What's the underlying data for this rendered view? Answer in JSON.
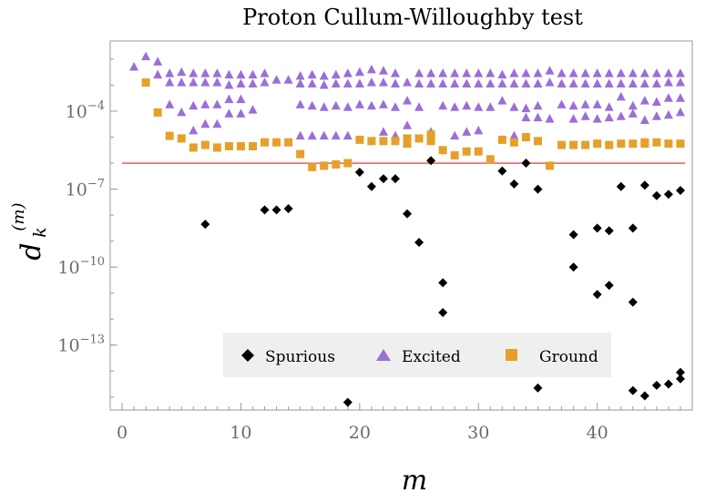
{
  "chart_data": {
    "type": "scatter",
    "title": "Proton Cullum-Willoughby test",
    "xlabel": "m",
    "ylabel_main": "d",
    "ylabel_sub": "k",
    "ylabel_sup": "(m)",
    "xlim": [
      -1,
      48
    ],
    "ylim_log10": [
      -15.5,
      -1.3
    ],
    "y_scale": "log",
    "x_ticks": [
      0,
      10,
      20,
      30,
      40
    ],
    "y_ticks": [
      {
        "exp": -4,
        "base": "10",
        "sup": "−4"
      },
      {
        "exp": -7,
        "base": "10",
        "sup": "−7"
      },
      {
        "exp": -10,
        "base": "10",
        "sup": "−10"
      },
      {
        "exp": -13,
        "base": "10",
        "sup": "−13"
      }
    ],
    "threshold_line": {
      "log10_y": -6.0,
      "color": "#e8202a"
    },
    "legend_position": "bottom-center",
    "series": [
      {
        "name": "Spurious",
        "marker": "diamond",
        "color": "#000000",
        "points": [
          [
            7,
            -8.35
          ],
          [
            12,
            -7.8
          ],
          [
            13,
            -7.8
          ],
          [
            14,
            -7.75
          ],
          [
            19,
            -15.2
          ],
          [
            20,
            -6.35
          ],
          [
            21,
            -6.9
          ],
          [
            22,
            -6.6
          ],
          [
            23,
            -6.6
          ],
          [
            24,
            -7.95
          ],
          [
            25,
            -9.05
          ],
          [
            26,
            -5.9
          ],
          [
            27,
            -10.6
          ],
          [
            27,
            -11.75
          ],
          [
            32,
            -6.3
          ],
          [
            33,
            -6.8
          ],
          [
            34,
            -6.0
          ],
          [
            35,
            -14.65
          ],
          [
            35,
            -7.0
          ],
          [
            38,
            -8.75
          ],
          [
            38,
            -10.0
          ],
          [
            40,
            -8.5
          ],
          [
            40,
            -11.05
          ],
          [
            41,
            -8.6
          ],
          [
            41,
            -10.7
          ],
          [
            42,
            -6.9
          ],
          [
            43,
            -8.5
          ],
          [
            43,
            -11.35
          ],
          [
            43,
            -14.75
          ],
          [
            44,
            -14.95
          ],
          [
            44,
            -6.85
          ],
          [
            45,
            -14.55
          ],
          [
            45,
            -7.25
          ],
          [
            46,
            -14.5
          ],
          [
            46,
            -7.2
          ],
          [
            47,
            -7.05
          ],
          [
            47,
            -14.3
          ],
          [
            47,
            -14.05
          ]
        ]
      },
      {
        "name": "Excited",
        "marker": "triangle",
        "color": "#9b6fd6",
        "points": [
          [
            1,
            -2.3
          ],
          [
            2,
            -1.9
          ],
          [
            3,
            -2.1
          ],
          [
            4,
            -2.55
          ],
          [
            5,
            -2.5
          ],
          [
            6,
            -2.55
          ],
          [
            7,
            -2.55
          ],
          [
            8,
            -2.55
          ],
          [
            9,
            -2.6
          ],
          [
            10,
            -2.6
          ],
          [
            11,
            -2.6
          ],
          [
            12,
            -2.55
          ],
          [
            13,
            -2.8
          ],
          [
            14,
            -2.8
          ],
          [
            15,
            -2.65
          ],
          [
            16,
            -2.6
          ],
          [
            17,
            -2.65
          ],
          [
            18,
            -2.6
          ],
          [
            19,
            -2.55
          ],
          [
            20,
            -2.5
          ],
          [
            21,
            -2.4
          ],
          [
            22,
            -2.45
          ],
          [
            23,
            -2.55
          ],
          [
            24,
            -3.6
          ],
          [
            25,
            -2.55
          ],
          [
            26,
            -2.55
          ],
          [
            27,
            -2.55
          ],
          [
            28,
            -2.55
          ],
          [
            29,
            -2.55
          ],
          [
            30,
            -2.55
          ],
          [
            31,
            -2.55
          ],
          [
            32,
            -2.6
          ],
          [
            33,
            -2.55
          ],
          [
            34,
            -2.55
          ],
          [
            35,
            -2.55
          ],
          [
            36,
            -2.45
          ],
          [
            37,
            -2.55
          ],
          [
            38,
            -2.55
          ],
          [
            39,
            -2.55
          ],
          [
            40,
            -2.55
          ],
          [
            41,
            -2.55
          ],
          [
            42,
            -2.55
          ],
          [
            43,
            -2.55
          ],
          [
            44,
            -2.55
          ],
          [
            45,
            -2.55
          ],
          [
            46,
            -2.55
          ],
          [
            47,
            -2.55
          ],
          [
            3,
            -2.6
          ],
          [
            4,
            -2.9
          ],
          [
            5,
            -2.9
          ],
          [
            6,
            -2.9
          ],
          [
            7,
            -2.9
          ],
          [
            8,
            -2.9
          ],
          [
            9,
            -3.0
          ],
          [
            10,
            -2.95
          ],
          [
            11,
            -2.95
          ],
          [
            12,
            -2.9
          ],
          [
            15,
            -2.95
          ],
          [
            16,
            -2.95
          ],
          [
            17,
            -3.0
          ],
          [
            18,
            -2.95
          ],
          [
            19,
            -2.95
          ],
          [
            20,
            -2.95
          ],
          [
            21,
            -2.9
          ],
          [
            22,
            -2.9
          ],
          [
            23,
            -2.95
          ],
          [
            24,
            -2.9
          ],
          [
            25,
            -2.95
          ],
          [
            26,
            -2.95
          ],
          [
            27,
            -2.95
          ],
          [
            28,
            -2.95
          ],
          [
            29,
            -2.95
          ],
          [
            30,
            -2.95
          ],
          [
            31,
            -2.95
          ],
          [
            32,
            -2.95
          ],
          [
            33,
            -2.95
          ],
          [
            34,
            -2.95
          ],
          [
            35,
            -2.95
          ],
          [
            36,
            -2.9
          ],
          [
            37,
            -2.95
          ],
          [
            38,
            -2.95
          ],
          [
            39,
            -2.95
          ],
          [
            40,
            -2.95
          ],
          [
            41,
            -2.95
          ],
          [
            42,
            -2.95
          ],
          [
            43,
            -2.95
          ],
          [
            44,
            -2.95
          ],
          [
            45,
            -2.95
          ],
          [
            46,
            -2.9
          ],
          [
            47,
            -2.9
          ],
          [
            4,
            -3.75
          ],
          [
            5,
            -4.05
          ],
          [
            6,
            -3.8
          ],
          [
            7,
            -3.75
          ],
          [
            8,
            -3.75
          ],
          [
            9,
            -3.55
          ],
          [
            10,
            -3.55
          ],
          [
            11,
            -3.95
          ],
          [
            15,
            -3.75
          ],
          [
            16,
            -3.8
          ],
          [
            17,
            -3.85
          ],
          [
            18,
            -3.8
          ],
          [
            19,
            -3.85
          ],
          [
            20,
            -3.75
          ],
          [
            21,
            -3.8
          ],
          [
            22,
            -3.75
          ],
          [
            23,
            -3.85
          ],
          [
            24,
            -4.55
          ],
          [
            25,
            -3.85
          ],
          [
            26,
            -4.8
          ],
          [
            27,
            -3.8
          ],
          [
            28,
            -3.85
          ],
          [
            29,
            -3.8
          ],
          [
            30,
            -3.85
          ],
          [
            31,
            -3.85
          ],
          [
            32,
            -3.6
          ],
          [
            33,
            -3.85
          ],
          [
            34,
            -3.9
          ],
          [
            35,
            -3.8
          ],
          [
            36,
            -4.3
          ],
          [
            37,
            -3.75
          ],
          [
            38,
            -3.8
          ],
          [
            39,
            -3.75
          ],
          [
            40,
            -3.75
          ],
          [
            41,
            -3.85
          ],
          [
            42,
            -3.45
          ],
          [
            43,
            -3.8
          ],
          [
            44,
            -3.6
          ],
          [
            45,
            -3.65
          ],
          [
            46,
            -3.5
          ],
          [
            47,
            -3.5
          ],
          [
            6,
            -4.75
          ],
          [
            7,
            -4.5
          ],
          [
            8,
            -4.5
          ],
          [
            9,
            -4.1
          ],
          [
            10,
            -4.1
          ],
          [
            15,
            -4.95
          ],
          [
            16,
            -4.95
          ],
          [
            17,
            -4.95
          ],
          [
            18,
            -4.95
          ],
          [
            19,
            -4.95
          ],
          [
            22,
            -4.8
          ],
          [
            23,
            -4.95
          ],
          [
            26,
            -5.0
          ],
          [
            28,
            -4.95
          ],
          [
            29,
            -4.8
          ],
          [
            30,
            -4.75
          ],
          [
            33,
            -4.95
          ],
          [
            34,
            -4.25
          ],
          [
            35,
            -4.25
          ],
          [
            38,
            -4.3
          ],
          [
            39,
            -4.2
          ],
          [
            40,
            -4.3
          ],
          [
            41,
            -4.25
          ],
          [
            42,
            -4.2
          ],
          [
            43,
            -4.1
          ],
          [
            44,
            -4.35
          ],
          [
            45,
            -4.2
          ],
          [
            46,
            -4.15
          ],
          [
            47,
            -4.05
          ]
        ]
      },
      {
        "name": "Ground",
        "marker": "square",
        "color": "#e6a02a",
        "points": [
          [
            2,
            -2.9
          ],
          [
            3,
            -4.05
          ],
          [
            4,
            -4.95
          ],
          [
            5,
            -5.05
          ],
          [
            6,
            -5.4
          ],
          [
            7,
            -5.3
          ],
          [
            8,
            -5.4
          ],
          [
            9,
            -5.35
          ],
          [
            10,
            -5.35
          ],
          [
            11,
            -5.35
          ],
          [
            12,
            -5.2
          ],
          [
            13,
            -5.2
          ],
          [
            14,
            -5.2
          ],
          [
            15,
            -5.65
          ],
          [
            16,
            -6.15
          ],
          [
            17,
            -6.1
          ],
          [
            18,
            -6.05
          ],
          [
            19,
            -6.0
          ],
          [
            20,
            -5.1
          ],
          [
            21,
            -5.15
          ],
          [
            22,
            -5.15
          ],
          [
            23,
            -5.15
          ],
          [
            24,
            -5.25
          ],
          [
            25,
            -5.05
          ],
          [
            26,
            -4.9
          ],
          [
            27,
            -5.5
          ],
          [
            28,
            -5.7
          ],
          [
            29,
            -5.55
          ],
          [
            30,
            -5.55
          ],
          [
            31,
            -5.85
          ],
          [
            32,
            -5.1
          ],
          [
            33,
            -5.2
          ],
          [
            34,
            -5.0
          ],
          [
            35,
            -5.15
          ],
          [
            36,
            -6.1
          ],
          [
            37,
            -5.3
          ],
          [
            38,
            -5.3
          ],
          [
            39,
            -5.3
          ],
          [
            40,
            -5.25
          ],
          [
            41,
            -5.3
          ],
          [
            42,
            -5.25
          ],
          [
            43,
            -5.25
          ],
          [
            44,
            -5.25
          ],
          [
            45,
            -5.2
          ],
          [
            46,
            -5.25
          ],
          [
            47,
            -5.25
          ],
          [
            26,
            -5.15
          ],
          [
            24,
            -5.05
          ],
          [
            44,
            -5.2
          ]
        ]
      }
    ]
  }
}
